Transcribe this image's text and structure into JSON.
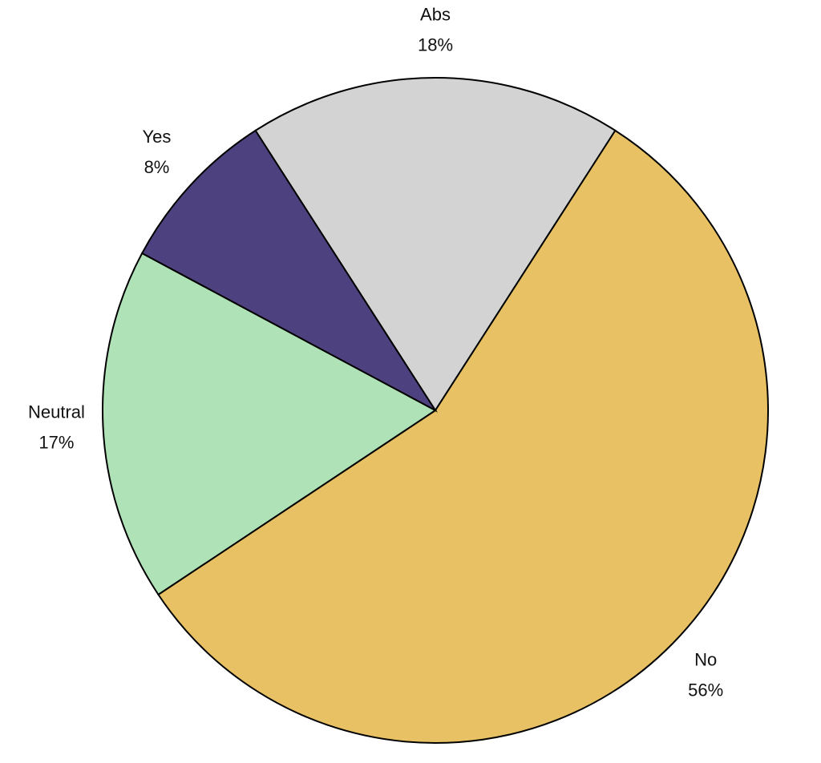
{
  "chart_data": {
    "type": "pie",
    "categories": [
      "Abs",
      "No",
      "Neutral",
      "Yes"
    ],
    "values": [
      18,
      56,
      17,
      8
    ],
    "value_labels": [
      "18%",
      "56%",
      "17%",
      "8%"
    ],
    "colors": [
      "#d3d3d3",
      "#e8c164",
      "#b0e2b8",
      "#4e4180"
    ]
  }
}
